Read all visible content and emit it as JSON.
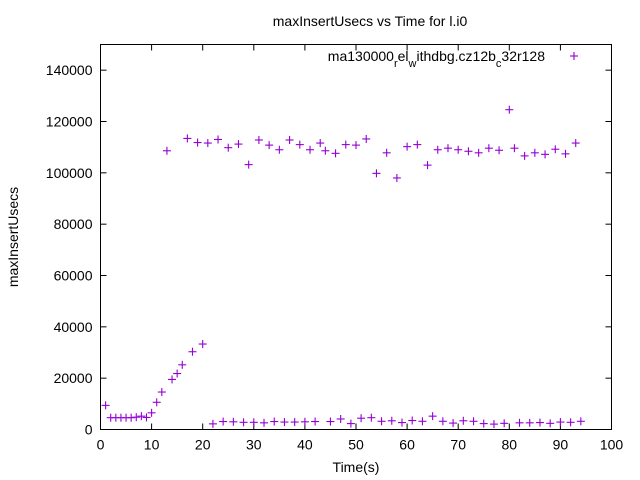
{
  "chart_data": {
    "type": "scatter",
    "title": "maxInsertUsecs vs Time for l.i0",
    "xlabel": "Time(s)",
    "ylabel": "maxInsertUsecs",
    "xlim": [
      0,
      100
    ],
    "ylim": [
      0,
      150000
    ],
    "x_ticks": [
      0,
      10,
      20,
      30,
      40,
      50,
      60,
      70,
      80,
      90,
      100
    ],
    "y_ticks": [
      0,
      20000,
      40000,
      60000,
      80000,
      100000,
      120000,
      140000
    ],
    "grid": false,
    "legend_position": "top-right",
    "marker": "plus",
    "color": "#9400d3",
    "series": [
      {
        "legend_parts": [
          {
            "text": "ma130000",
            "shift": "normal"
          },
          {
            "text": "r",
            "shift": "sub"
          },
          {
            "text": "el",
            "shift": "normal"
          },
          {
            "text": "w",
            "shift": "sub"
          },
          {
            "text": "ithdbg.cz12b",
            "shift": "normal"
          },
          {
            "text": "c",
            "shift": "sub"
          },
          {
            "text": "32r128",
            "shift": "normal"
          }
        ],
        "points": [
          [
            1,
            9400
          ],
          [
            2,
            4600
          ],
          [
            3,
            4600
          ],
          [
            4,
            4600
          ],
          [
            5,
            4600
          ],
          [
            6,
            4600
          ],
          [
            7,
            4800
          ],
          [
            8,
            5200
          ],
          [
            9,
            4700
          ],
          [
            10,
            6500
          ],
          [
            11,
            10600
          ],
          [
            12,
            14600
          ],
          [
            13,
            108600
          ],
          [
            14,
            19500
          ],
          [
            15,
            21800
          ],
          [
            16,
            25200
          ],
          [
            17,
            113400
          ],
          [
            18,
            30300
          ],
          [
            19,
            111800
          ],
          [
            20,
            33300
          ],
          [
            21,
            111600
          ],
          [
            22,
            2200
          ],
          [
            23,
            113000
          ],
          [
            24,
            3100
          ],
          [
            25,
            109800
          ],
          [
            26,
            3000
          ],
          [
            27,
            111200
          ],
          [
            28,
            2800
          ],
          [
            29,
            103200
          ],
          [
            30,
            2800
          ],
          [
            31,
            112800
          ],
          [
            32,
            2600
          ],
          [
            33,
            110800
          ],
          [
            34,
            3100
          ],
          [
            35,
            109000
          ],
          [
            36,
            2900
          ],
          [
            37,
            112800
          ],
          [
            38,
            2900
          ],
          [
            39,
            111000
          ],
          [
            40,
            3000
          ],
          [
            41,
            109000
          ],
          [
            42,
            3100
          ],
          [
            43,
            111600
          ],
          [
            44,
            108600
          ],
          [
            45,
            3100
          ],
          [
            46,
            107600
          ],
          [
            47,
            4100
          ],
          [
            48,
            111000
          ],
          [
            49,
            2300
          ],
          [
            50,
            110800
          ],
          [
            51,
            4400
          ],
          [
            52,
            113200
          ],
          [
            53,
            4600
          ],
          [
            54,
            99800
          ],
          [
            55,
            3200
          ],
          [
            56,
            107800
          ],
          [
            57,
            3400
          ],
          [
            58,
            98000
          ],
          [
            59,
            2700
          ],
          [
            60,
            110200
          ],
          [
            61,
            3500
          ],
          [
            62,
            111000
          ],
          [
            63,
            3200
          ],
          [
            64,
            103000
          ],
          [
            65,
            5200
          ],
          [
            66,
            109000
          ],
          [
            67,
            3200
          ],
          [
            68,
            109600
          ],
          [
            69,
            2500
          ],
          [
            70,
            109000
          ],
          [
            71,
            3400
          ],
          [
            72,
            108400
          ],
          [
            73,
            3200
          ],
          [
            74,
            107800
          ],
          [
            75,
            2300
          ],
          [
            76,
            109600
          ],
          [
            77,
            2100
          ],
          [
            78,
            108800
          ],
          [
            79,
            2400
          ],
          [
            80,
            124600
          ],
          [
            81,
            109600
          ],
          [
            82,
            2600
          ],
          [
            83,
            106600
          ],
          [
            84,
            2600
          ],
          [
            85,
            107800
          ],
          [
            86,
            2700
          ],
          [
            87,
            107200
          ],
          [
            88,
            2400
          ],
          [
            89,
            109200
          ],
          [
            90,
            2900
          ],
          [
            91,
            107400
          ],
          [
            92,
            2800
          ],
          [
            93,
            111600
          ],
          [
            94,
            3200
          ]
        ]
      }
    ]
  }
}
